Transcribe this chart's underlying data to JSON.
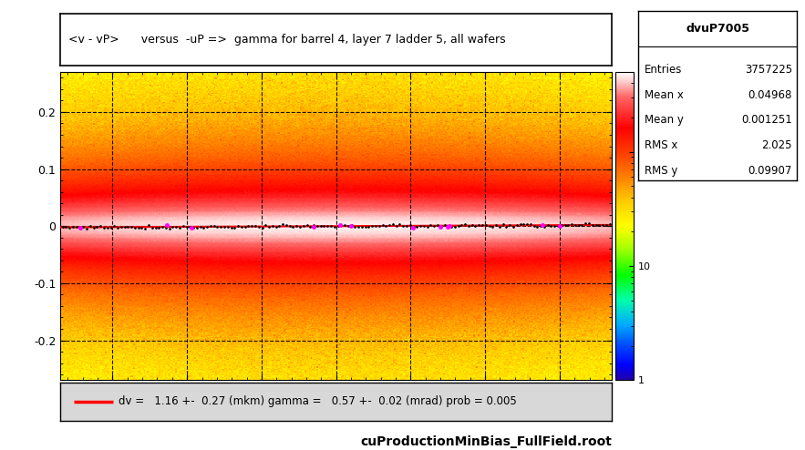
{
  "title": "<v - vP>      versus  -uP =>  gamma for barrel 4, layer 7 ladder 5, all wafers",
  "xlabel": "cuProductionMinBias_FullField.root",
  "stats_title": "dvuP7005",
  "stats": {
    "Entries": "3757225",
    "Mean x": "0.04968",
    "Mean y": "0.001251",
    "RMS x": "2.025",
    "RMS y": "0.09907"
  },
  "legend_text": "dv =   1.16 +-  0.27 (mkm) gamma =   0.57 +-  0.02 (mrad) prob = 0.005",
  "xmin": -3.7,
  "xmax": 3.7,
  "ymin": -0.27,
  "ymax": 0.27,
  "xticks": [
    -3,
    -2,
    -1,
    0,
    1,
    2,
    3
  ],
  "yticks": [
    -0.2,
    -0.1,
    0.0,
    0.1,
    0.2
  ],
  "fit_slope": 0.00057,
  "fit_intercept": 1e-06,
  "colorbar_min": 1,
  "colorbar_max": 500,
  "background_color": "#ffffff"
}
